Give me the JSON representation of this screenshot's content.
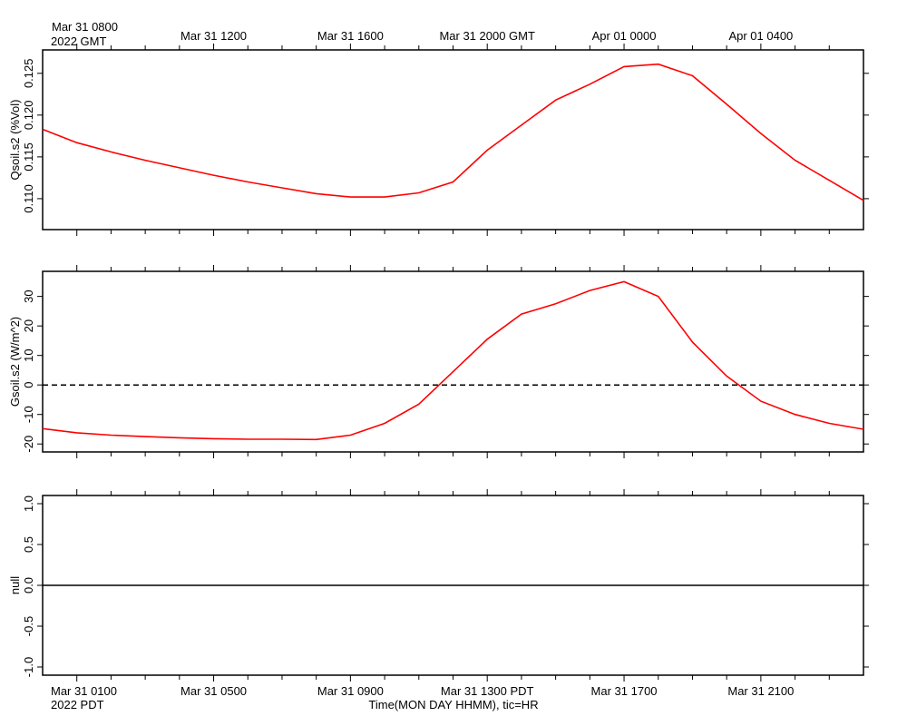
{
  "chart_data": {
    "time_axis": {
      "top_labels": [
        "Mar 31 0800",
        "Mar 31 1200",
        "Mar 31 1600",
        "Mar 31 2000 GMT",
        "Apr 01 0000",
        "Apr 01 0400"
      ],
      "top_year": "2022 GMT",
      "bottom_labels": [
        "Mar 31 0100",
        "Mar 31 0500",
        "Mar 31 0900",
        "Mar 31 1300 PDT",
        "Mar 31 1700",
        "Mar 31 2100"
      ],
      "bottom_year": "2022 PDT",
      "xlabel": "Time(MON DAY HHMM), tic=HR",
      "labeled_hours": [
        0,
        4,
        8,
        12,
        16,
        20
      ],
      "xlim_hours": [
        -1,
        23
      ]
    },
    "panels": [
      {
        "type": "line",
        "ylabel": "Qsoil.s2 (%Vol)",
        "ylim": [
          0.1063,
          0.1278
        ],
        "yticks": [
          0.11,
          0.115,
          0.12,
          0.125
        ],
        "ytick_labels": [
          "0.110",
          "0.115",
          "0.120",
          "0.125"
        ],
        "zero_line": "none",
        "series": [
          {
            "color": "#ff0000",
            "x": [
              -1,
              0,
              1,
              2,
              3,
              4,
              5,
              6,
              7,
              8,
              9,
              10,
              11,
              12,
              13,
              14,
              15,
              16,
              17,
              18,
              19,
              20,
              21,
              22,
              23
            ],
            "y": [
              0.1183,
              0.1167,
              0.1156,
              0.1146,
              0.1137,
              0.1128,
              0.112,
              0.1113,
              0.1106,
              0.1102,
              0.1102,
              0.1107,
              0.112,
              0.1158,
              0.1188,
              0.1218,
              0.1237,
              0.1258,
              0.1261,
              0.1247,
              0.1213,
              0.1178,
              0.1146,
              0.1122,
              0.1098
            ]
          }
        ]
      },
      {
        "type": "line",
        "ylabel": "Gsoil.s2 (W/m^2)",
        "ylim": [
          -22.7,
          38.5
        ],
        "yticks": [
          -20,
          -10,
          0,
          10,
          20,
          30
        ],
        "ytick_labels": [
          "-20",
          "-10",
          "0",
          "10",
          "20",
          "30"
        ],
        "zero_line": "dashed",
        "series": [
          {
            "color": "#ff0000",
            "x": [
              -1,
              0,
              1,
              2,
              3,
              4,
              5,
              6,
              7,
              8,
              9,
              10,
              11,
              12,
              13,
              14,
              15,
              16,
              17,
              18,
              19,
              20,
              21,
              22,
              23
            ],
            "y": [
              -14.8,
              -16.2,
              -17.0,
              -17.5,
              -17.9,
              -18.2,
              -18.4,
              -18.4,
              -18.5,
              -17.0,
              -13.0,
              -6.5,
              4.5,
              15.5,
              24.0,
              27.5,
              32.0,
              35.0,
              30.0,
              14.5,
              3.0,
              -5.5,
              -10.0,
              -13.0,
              -15.0
            ]
          }
        ]
      },
      {
        "type": "line",
        "ylabel": "null",
        "ylim": [
          -1.1,
          1.1
        ],
        "yticks": [
          -1.0,
          -0.5,
          0.0,
          0.5,
          1.0
        ],
        "ytick_labels": [
          "-1.0",
          "-0.5",
          "0.0",
          "0.5",
          "1.0"
        ],
        "zero_line": "solid",
        "series": []
      }
    ]
  }
}
